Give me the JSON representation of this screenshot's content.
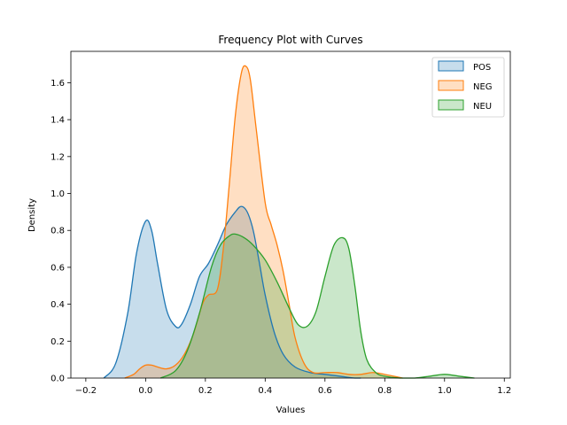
{
  "chart_data": {
    "type": "area",
    "title": "Frequency Plot with Curves",
    "xlabel": "Values",
    "ylabel": "Density",
    "xlim": [
      -0.25,
      1.22
    ],
    "ylim": [
      0,
      1.77
    ],
    "xticks": [
      -0.2,
      0.0,
      0.2,
      0.4,
      0.6,
      0.8,
      1.0,
      1.2
    ],
    "xtick_labels": [
      "−0.2",
      "0.0",
      "0.2",
      "0.4",
      "0.6",
      "0.8",
      "1.0",
      "1.2"
    ],
    "yticks": [
      0.0,
      0.2,
      0.4,
      0.6,
      0.8,
      1.0,
      1.2,
      1.4,
      1.6
    ],
    "ytick_labels": [
      "0.0",
      "0.2",
      "0.4",
      "0.6",
      "0.8",
      "1.0",
      "1.2",
      "1.4",
      "1.6"
    ],
    "grid": false,
    "legend_position": "top-right",
    "series": [
      {
        "name": "POS",
        "color": "#1f77b4",
        "x": [
          -0.14,
          -0.1,
          -0.06,
          -0.03,
          0.0,
          0.02,
          0.04,
          0.07,
          0.1,
          0.12,
          0.15,
          0.18,
          0.21,
          0.24,
          0.27,
          0.3,
          0.32,
          0.34,
          0.36,
          0.38,
          0.4,
          0.43,
          0.46,
          0.5,
          0.55,
          0.6,
          0.65,
          0.7,
          0.72
        ],
        "y": [
          0.0,
          0.08,
          0.35,
          0.68,
          0.85,
          0.8,
          0.62,
          0.37,
          0.28,
          0.29,
          0.4,
          0.55,
          0.62,
          0.72,
          0.83,
          0.9,
          0.93,
          0.9,
          0.8,
          0.63,
          0.45,
          0.25,
          0.13,
          0.06,
          0.03,
          0.02,
          0.01,
          0.0,
          0.0
        ]
      },
      {
        "name": "NEG",
        "color": "#ff7f0e",
        "x": [
          -0.07,
          -0.04,
          -0.02,
          0.0,
          0.02,
          0.04,
          0.07,
          0.1,
          0.13,
          0.16,
          0.19,
          0.21,
          0.24,
          0.26,
          0.28,
          0.3,
          0.32,
          0.335,
          0.35,
          0.37,
          0.4,
          0.42,
          0.44,
          0.46,
          0.48,
          0.5,
          0.53,
          0.56,
          0.6,
          0.64,
          0.68,
          0.72,
          0.76,
          0.8,
          0.83,
          0.86
        ],
        "y": [
          0.0,
          0.02,
          0.05,
          0.07,
          0.07,
          0.06,
          0.05,
          0.07,
          0.13,
          0.24,
          0.4,
          0.45,
          0.48,
          0.7,
          1.05,
          1.42,
          1.65,
          1.69,
          1.62,
          1.35,
          0.95,
          0.83,
          0.72,
          0.58,
          0.4,
          0.22,
          0.08,
          0.03,
          0.03,
          0.03,
          0.02,
          0.02,
          0.03,
          0.02,
          0.01,
          0.0
        ]
      },
      {
        "name": "NEU",
        "color": "#2ca02c",
        "x": [
          0.05,
          0.1,
          0.14,
          0.18,
          0.22,
          0.25,
          0.28,
          0.3,
          0.33,
          0.36,
          0.4,
          0.44,
          0.48,
          0.51,
          0.54,
          0.57,
          0.6,
          0.63,
          0.66,
          0.68,
          0.7,
          0.72,
          0.74,
          0.77,
          0.8,
          0.85,
          0.9,
          0.95,
          1.0,
          1.05,
          1.1
        ],
        "y": [
          0.0,
          0.04,
          0.15,
          0.35,
          0.6,
          0.72,
          0.77,
          0.78,
          0.76,
          0.72,
          0.64,
          0.52,
          0.38,
          0.29,
          0.28,
          0.36,
          0.55,
          0.72,
          0.76,
          0.7,
          0.5,
          0.25,
          0.1,
          0.03,
          0.01,
          0.0,
          0.0,
          0.01,
          0.02,
          0.01,
          0.0
        ]
      }
    ]
  }
}
